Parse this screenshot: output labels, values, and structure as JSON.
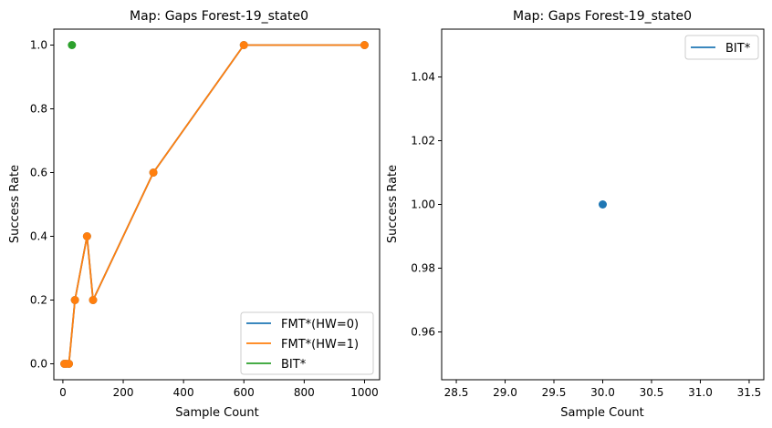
{
  "chart_data": [
    {
      "type": "line",
      "title": "Map: Gaps Forest-19_state0",
      "xlabel": "Sample Count",
      "ylabel": "Success Rate",
      "xlim": [
        -30,
        1050
      ],
      "ylim": [
        -0.05,
        1.05
      ],
      "xticks": [
        0,
        200,
        400,
        600,
        800,
        1000
      ],
      "yticks": [
        0.0,
        0.2,
        0.4,
        0.6,
        0.8,
        1.0
      ],
      "xtick_labels": [
        "0",
        "200",
        "400",
        "600",
        "800",
        "1000"
      ],
      "ytick_labels": [
        "0.0",
        "0.2",
        "0.4",
        "0.6",
        "0.8",
        "1.0"
      ],
      "grid": false,
      "legend_position": "lower-right",
      "series": [
        {
          "name": "FMT*(HW=0)",
          "color": "#1f77b4",
          "x": [
            5,
            10,
            20,
            40,
            80,
            100,
            300,
            600,
            1000
          ],
          "y": [
            0.0,
            0.0,
            0.0,
            0.2,
            0.4,
            0.2,
            0.6,
            1.0,
            1.0
          ]
        },
        {
          "name": "FMT*(HW=1)",
          "color": "#ff7f0e",
          "x": [
            5,
            10,
            20,
            40,
            80,
            100,
            300,
            600,
            1000
          ],
          "y": [
            0.0,
            0.0,
            0.0,
            0.2,
            0.4,
            0.2,
            0.6,
            1.0,
            1.0
          ]
        },
        {
          "name": "BIT*",
          "color": "#2ca02c",
          "x": [
            30
          ],
          "y": [
            1.0
          ]
        }
      ]
    },
    {
      "type": "line",
      "title": "Map: Gaps Forest-19_state0",
      "xlabel": "Sample Count",
      "ylabel": "Success Rate",
      "xlim": [
        28.35,
        31.65
      ],
      "ylim": [
        0.945,
        1.055
      ],
      "xticks": [
        28.5,
        29.0,
        29.5,
        30.0,
        30.5,
        31.0,
        31.5
      ],
      "yticks": [
        0.96,
        0.98,
        1.0,
        1.02,
        1.04
      ],
      "xtick_labels": [
        "28.5",
        "29.0",
        "29.5",
        "30.0",
        "30.5",
        "31.0",
        "31.5"
      ],
      "ytick_labels": [
        "0.96",
        "0.98",
        "1.00",
        "1.02",
        "1.04"
      ],
      "grid": false,
      "legend_position": "top-right",
      "series": [
        {
          "name": "BIT*",
          "color": "#1f77b4",
          "x": [
            30
          ],
          "y": [
            1.0
          ]
        }
      ]
    }
  ]
}
